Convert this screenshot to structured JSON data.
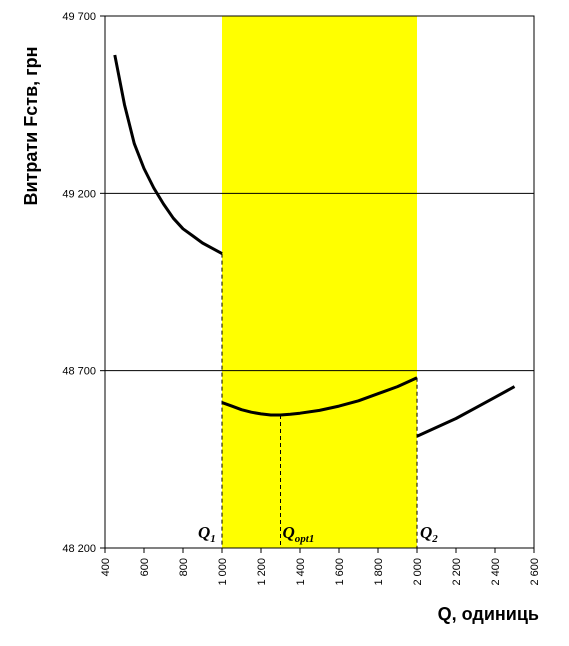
{
  "chart_data": {
    "type": "line",
    "title": "",
    "xlabel": "Q, одиниць",
    "ylabel": "Витрати  Fств, грн",
    "xlim": [
      400,
      2600
    ],
    "ylim": [
      48200,
      49700
    ],
    "x_ticks": [
      400,
      600,
      800,
      1000,
      1200,
      1400,
      1600,
      1800,
      2000,
      2200,
      2400,
      2600
    ],
    "x_tick_labels": [
      "400",
      "600",
      "800",
      "1 000",
      "1 200",
      "1 400",
      "1 600",
      "1 800",
      "2 000",
      "2 200",
      "2 400",
      "2 600"
    ],
    "y_ticks": [
      48200,
      48700,
      49200,
      49700
    ],
    "y_tick_labels": [
      "48 200",
      "48 700",
      "49 200",
      "49 700"
    ],
    "horizontal_gridlines": [
      48700,
      49200,
      49700
    ],
    "highlight_band": {
      "x_from": 1000,
      "x_to": 2000,
      "color": "#ffff00"
    },
    "series": [
      {
        "segment": 1,
        "points": [
          [
            450,
            49590
          ],
          [
            500,
            49450
          ],
          [
            550,
            49340
          ],
          [
            600,
            49270
          ],
          [
            650,
            49215
          ],
          [
            700,
            49170
          ],
          [
            750,
            49130
          ],
          [
            800,
            49100
          ],
          [
            850,
            49080
          ],
          [
            900,
            49060
          ],
          [
            950,
            49045
          ],
          [
            1000,
            49030
          ]
        ]
      },
      {
        "segment": 2,
        "points": [
          [
            1000,
            48610
          ],
          [
            1050,
            48600
          ],
          [
            1100,
            48590
          ],
          [
            1150,
            48583
          ],
          [
            1200,
            48578
          ],
          [
            1250,
            48575
          ],
          [
            1300,
            48575
          ],
          [
            1350,
            48577
          ],
          [
            1400,
            48580
          ],
          [
            1500,
            48588
          ],
          [
            1600,
            48600
          ],
          [
            1700,
            48615
          ],
          [
            1800,
            48635
          ],
          [
            1900,
            48655
          ],
          [
            2000,
            48680
          ]
        ]
      },
      {
        "segment": 3,
        "points": [
          [
            2000,
            48515
          ],
          [
            2100,
            48540
          ],
          [
            2200,
            48565
          ],
          [
            2300,
            48595
          ],
          [
            2400,
            48625
          ],
          [
            2500,
            48655
          ]
        ]
      }
    ],
    "annotations": [
      {
        "label": "Q",
        "subscript": "1",
        "x": 1000,
        "y_to": 49030
      },
      {
        "label": "Q",
        "subscript": "opt1",
        "x": 1300,
        "y_to": 48575
      },
      {
        "label": "Q",
        "subscript": "2",
        "x": 2000,
        "y_to": 48680
      }
    ]
  },
  "style": {
    "band_color": "#ffff00",
    "line_color": "#000000",
    "grid_color": "#000000"
  }
}
